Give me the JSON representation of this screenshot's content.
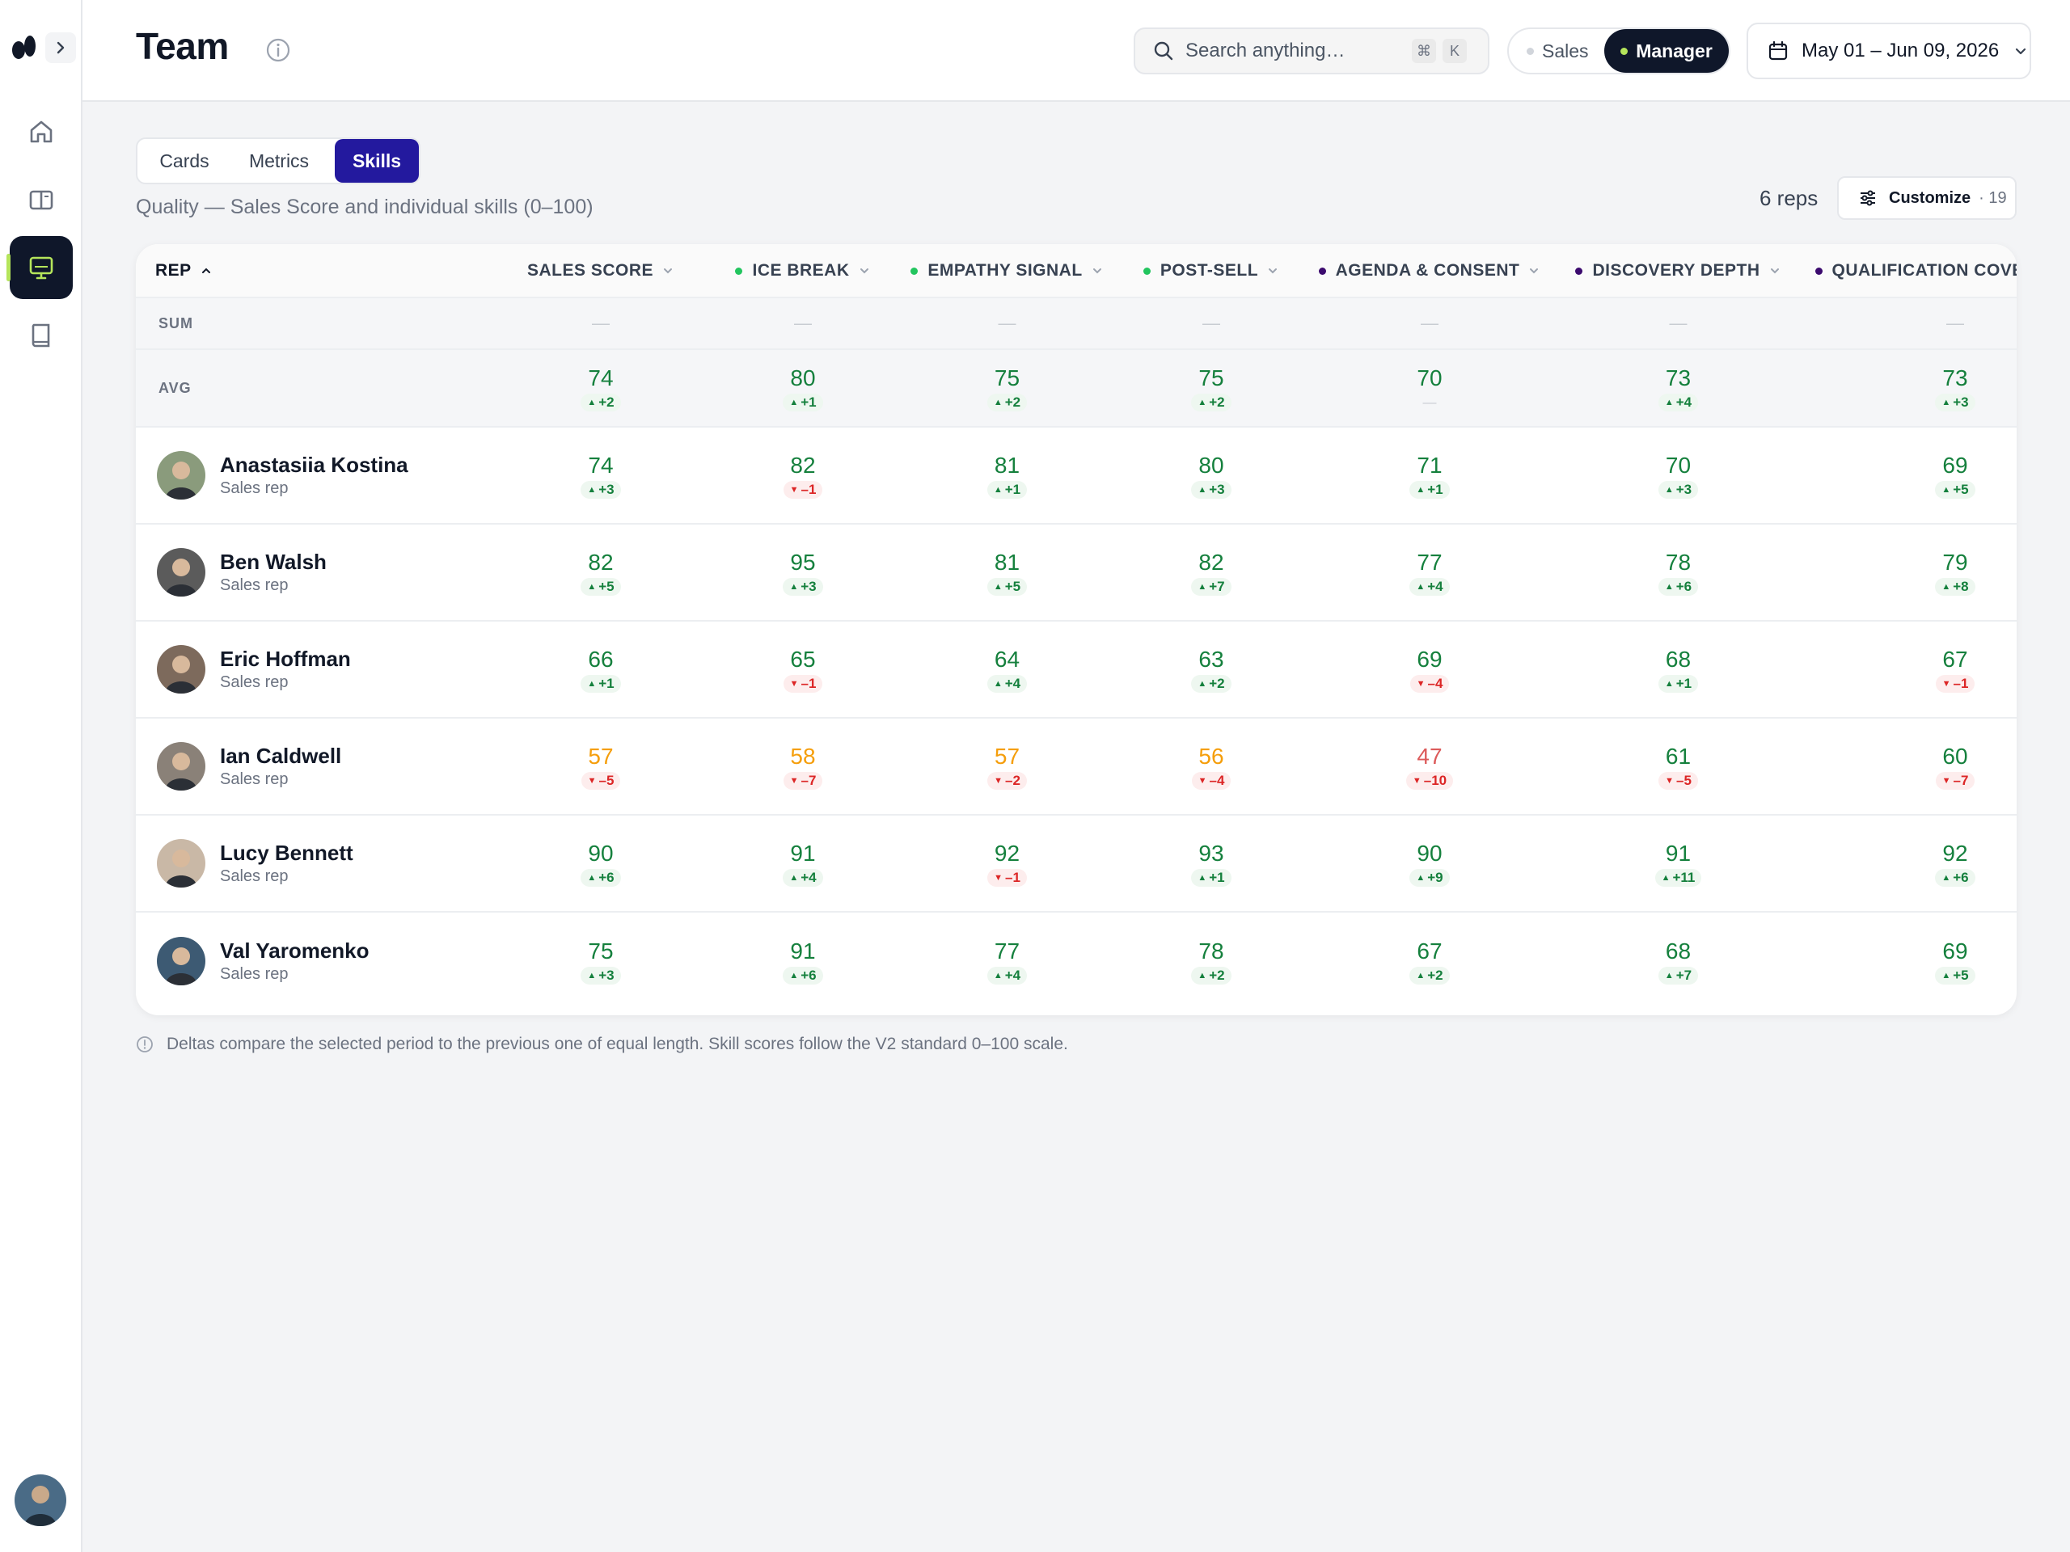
{
  "header": {
    "title": "Team",
    "search_placeholder": "Search anything…",
    "shortcut_cmd": "⌘",
    "shortcut_key": "K",
    "role_options": [
      "Sales",
      "Manager"
    ],
    "role_selected": "Manager",
    "date_range": "May 01 – Jun 09, 2026"
  },
  "colors": {
    "accent_tab": "#23199e",
    "nav_active": "#0f172a",
    "good": "#15803d",
    "warn": "#f59e0b",
    "bad": "#dc2626"
  },
  "tabs": [
    {
      "label": "Cards",
      "active": false
    },
    {
      "label": "Metrics",
      "active": false
    },
    {
      "label": "Skills",
      "active": true
    }
  ],
  "subtitle": "Quality — Sales Score and individual skills (0–100)",
  "reps_count": "6 reps",
  "customize": {
    "label": "Customize",
    "count": "· 19"
  },
  "columns": [
    {
      "label": "REP",
      "dot": null
    },
    {
      "label": "SALES SCORE",
      "dot": null
    },
    {
      "label": "ICE BREAK",
      "dot": "#22c55e"
    },
    {
      "label": "EMPATHY SIGNAL",
      "dot": "#22c55e"
    },
    {
      "label": "POST-SELL",
      "dot": "#22c55e"
    },
    {
      "label": "AGENDA & CONSENT",
      "dot": "#3b0a6e"
    },
    {
      "label": "DISCOVERY DEPTH",
      "dot": "#3b0a6e"
    },
    {
      "label": "QUALIFICATION COVERAGE",
      "dot": "#3b0a6e"
    }
  ],
  "sum_row": {
    "label": "SUM",
    "values": [
      "—",
      "—",
      "—",
      "—",
      "—",
      "—",
      "—"
    ]
  },
  "avg_row": {
    "label": "AVG",
    "cells": [
      {
        "v": "74",
        "d": "+2",
        "dir": "up",
        "c": "green"
      },
      {
        "v": "80",
        "d": "+1",
        "dir": "up",
        "c": "green"
      },
      {
        "v": "75",
        "d": "+2",
        "dir": "up",
        "c": "green"
      },
      {
        "v": "75",
        "d": "+2",
        "dir": "up",
        "c": "green"
      },
      {
        "v": "70",
        "d": "—",
        "dir": "none",
        "c": "green"
      },
      {
        "v": "73",
        "d": "+4",
        "dir": "up",
        "c": "green"
      },
      {
        "v": "73",
        "d": "+3",
        "dir": "up",
        "c": "green"
      }
    ]
  },
  "reps": [
    {
      "name": "Anastasiia Kostina",
      "role": "Sales rep",
      "avatar_color": "#8a9b7c",
      "cells": [
        {
          "v": "74",
          "d": "+3",
          "dir": "up",
          "c": "green"
        },
        {
          "v": "82",
          "d": "–1",
          "dir": "down",
          "c": "green"
        },
        {
          "v": "81",
          "d": "+1",
          "dir": "up",
          "c": "green"
        },
        {
          "v": "80",
          "d": "+3",
          "dir": "up",
          "c": "green"
        },
        {
          "v": "71",
          "d": "+1",
          "dir": "up",
          "c": "green"
        },
        {
          "v": "70",
          "d": "+3",
          "dir": "up",
          "c": "green"
        },
        {
          "v": "69",
          "d": "+5",
          "dir": "up",
          "c": "green"
        }
      ]
    },
    {
      "name": "Ben Walsh",
      "role": "Sales rep",
      "avatar_color": "#5b5b5b",
      "cells": [
        {
          "v": "82",
          "d": "+5",
          "dir": "up",
          "c": "green"
        },
        {
          "v": "95",
          "d": "+3",
          "dir": "up",
          "c": "green"
        },
        {
          "v": "81",
          "d": "+5",
          "dir": "up",
          "c": "green"
        },
        {
          "v": "82",
          "d": "+7",
          "dir": "up",
          "c": "green"
        },
        {
          "v": "77",
          "d": "+4",
          "dir": "up",
          "c": "green"
        },
        {
          "v": "78",
          "d": "+6",
          "dir": "up",
          "c": "green"
        },
        {
          "v": "79",
          "d": "+8",
          "dir": "up",
          "c": "green"
        }
      ]
    },
    {
      "name": "Eric Hoffman",
      "role": "Sales rep",
      "avatar_color": "#7d6a5c",
      "cells": [
        {
          "v": "66",
          "d": "+1",
          "dir": "up",
          "c": "green"
        },
        {
          "v": "65",
          "d": "–1",
          "dir": "down",
          "c": "green"
        },
        {
          "v": "64",
          "d": "+4",
          "dir": "up",
          "c": "green"
        },
        {
          "v": "63",
          "d": "+2",
          "dir": "up",
          "c": "green"
        },
        {
          "v": "69",
          "d": "–4",
          "dir": "down",
          "c": "green"
        },
        {
          "v": "68",
          "d": "+1",
          "dir": "up",
          "c": "green"
        },
        {
          "v": "67",
          "d": "–1",
          "dir": "down",
          "c": "green"
        }
      ]
    },
    {
      "name": "Ian Caldwell",
      "role": "Sales rep",
      "avatar_color": "#8a8178",
      "cells": [
        {
          "v": "57",
          "d": "–5",
          "dir": "down",
          "c": "amber"
        },
        {
          "v": "58",
          "d": "–7",
          "dir": "down",
          "c": "amber"
        },
        {
          "v": "57",
          "d": "–2",
          "dir": "down",
          "c": "amber"
        },
        {
          "v": "56",
          "d": "–4",
          "dir": "down",
          "c": "amber"
        },
        {
          "v": "47",
          "d": "–10",
          "dir": "down",
          "c": "red"
        },
        {
          "v": "61",
          "d": "–5",
          "dir": "down",
          "c": "green"
        },
        {
          "v": "60",
          "d": "–7",
          "dir": "down",
          "c": "green"
        }
      ]
    },
    {
      "name": "Lucy Bennett",
      "role": "Sales rep",
      "avatar_color": "#c9b8a6",
      "cells": [
        {
          "v": "90",
          "d": "+6",
          "dir": "up",
          "c": "green"
        },
        {
          "v": "91",
          "d": "+4",
          "dir": "up",
          "c": "green"
        },
        {
          "v": "92",
          "d": "–1",
          "dir": "down",
          "c": "green"
        },
        {
          "v": "93",
          "d": "+1",
          "dir": "up",
          "c": "green"
        },
        {
          "v": "90",
          "d": "+9",
          "dir": "up",
          "c": "green"
        },
        {
          "v": "91",
          "d": "+11",
          "dir": "up",
          "c": "green"
        },
        {
          "v": "92",
          "d": "+6",
          "dir": "up",
          "c": "green"
        }
      ]
    },
    {
      "name": "Val Yaromenko",
      "role": "Sales rep",
      "avatar_color": "#3d5a73",
      "cells": [
        {
          "v": "75",
          "d": "+3",
          "dir": "up",
          "c": "green"
        },
        {
          "v": "91",
          "d": "+6",
          "dir": "up",
          "c": "green"
        },
        {
          "v": "77",
          "d": "+4",
          "dir": "up",
          "c": "green"
        },
        {
          "v": "78",
          "d": "+2",
          "dir": "up",
          "c": "green"
        },
        {
          "v": "67",
          "d": "+2",
          "dir": "up",
          "c": "green"
        },
        {
          "v": "68",
          "d": "+7",
          "dir": "up",
          "c": "green"
        },
        {
          "v": "69",
          "d": "+5",
          "dir": "up",
          "c": "green"
        }
      ]
    }
  ],
  "footnote": "Deltas compare the selected period to the previous one of equal length. Skill scores follow the V2 standard 0–100 scale.",
  "icons": {
    "nav": [
      "home-icon",
      "book-open-icon",
      "monitor-icon",
      "notebook-icon"
    ],
    "active_nav": "monitor-icon"
  }
}
